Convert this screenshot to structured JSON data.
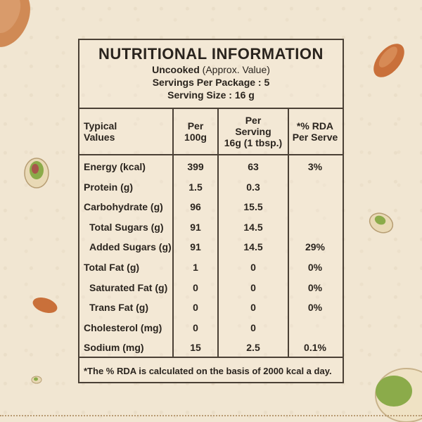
{
  "panel": {
    "title": "NUTRITIONAL INFORMATION",
    "uncooked_label": "Uncooked",
    "uncooked_note": " (Approx. Value)",
    "servings_per_package": "Servings Per Package : 5",
    "serving_size": "Serving Size : 16 g"
  },
  "columns": {
    "typical": "Typical\nValues",
    "per100": "Per\n100g",
    "perserving": "Per\nServing\n16g (1 tbsp.)",
    "rda": "*% RDA\nPer Serve"
  },
  "rows": [
    {
      "label": "Energy (kcal)",
      "per100": "399",
      "serving": "63",
      "rda": "3%"
    },
    {
      "label": "Protein (g)",
      "per100": "1.5",
      "serving": "0.3",
      "rda": ""
    },
    {
      "label": "Carbohydrate (g)",
      "per100": "96",
      "serving": "15.5",
      "rda": ""
    },
    {
      "label": "Total Sugars (g)",
      "per100": "91",
      "serving": "14.5",
      "rda": ""
    },
    {
      "label": "Added Sugars (g)",
      "per100": "91",
      "serving": "14.5",
      "rda": "29%"
    },
    {
      "label": "Total Fat (g)",
      "per100": "1",
      "serving": "0",
      "rda": "0%"
    },
    {
      "label": "Saturated Fat (g)",
      "per100": "0",
      "serving": "0",
      "rda": "0%"
    },
    {
      "label": "Trans Fat (g)",
      "per100": "0",
      "serving": "0",
      "rda": "0%"
    },
    {
      "label": "Cholesterol (mg)",
      "per100": "0",
      "serving": "0",
      "rda": ""
    },
    {
      "label": "Sodium (mg)",
      "per100": "15",
      "serving": "2.5",
      "rda": "0.1%"
    }
  ],
  "footnote": "*The % RDA is calculated on the basis of 2000 kcal a day.",
  "colors": {
    "background": "#f1e6d2",
    "ink": "#2a241e",
    "almond": "#c9703a",
    "pistachio": "#8bab4a"
  },
  "decorations": [
    "almond-icon",
    "pistachio-icon"
  ]
}
